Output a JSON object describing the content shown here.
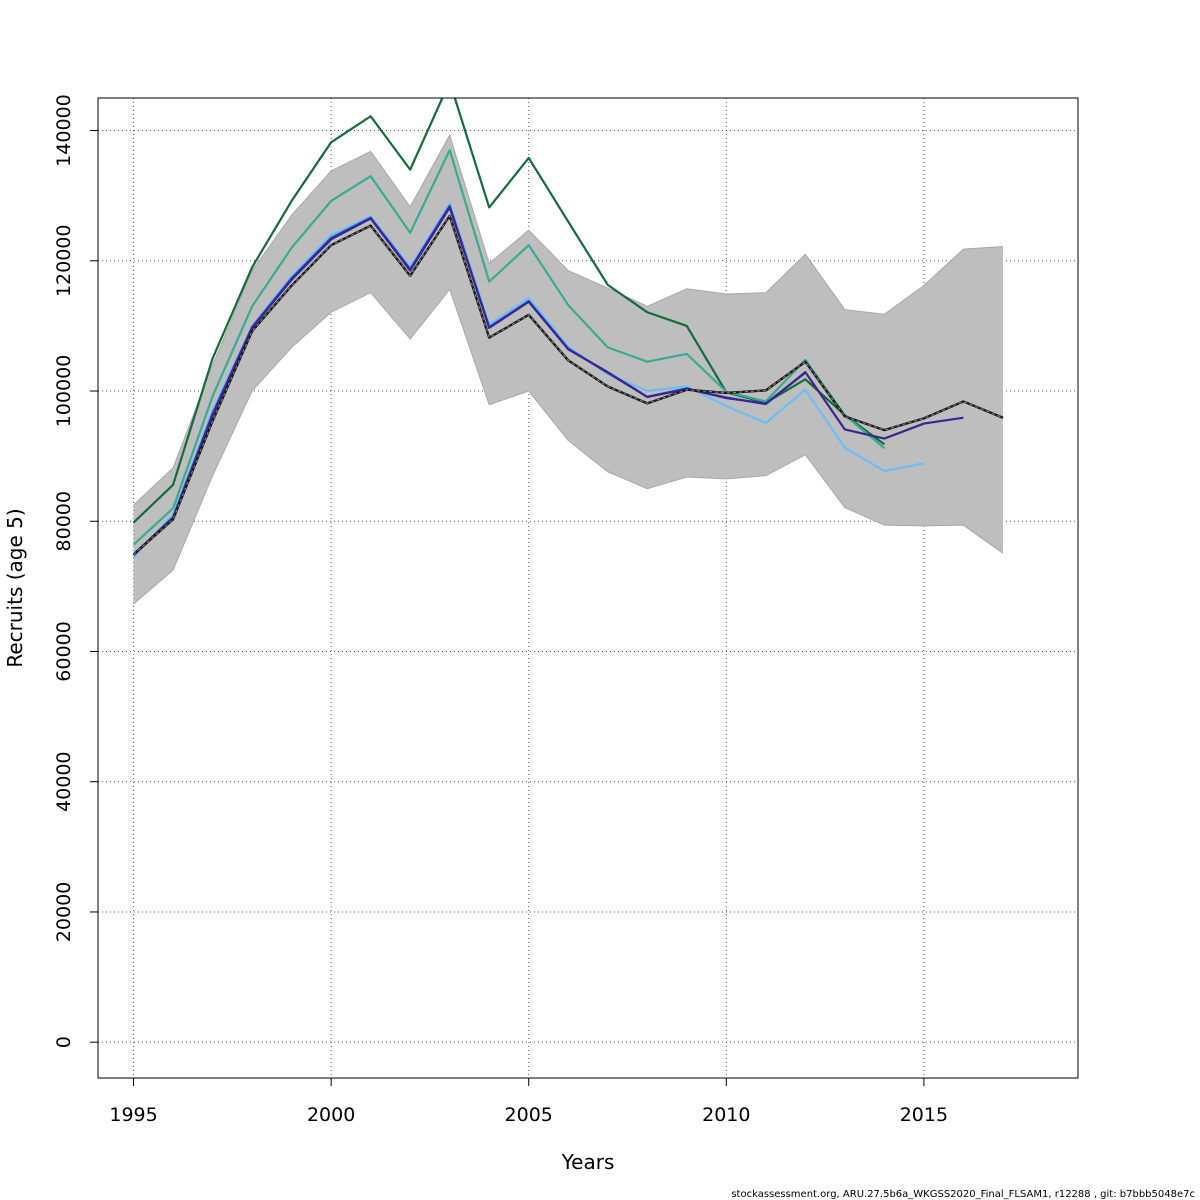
{
  "chart_data": {
    "type": "line",
    "xlabel": "Years",
    "ylabel": "Recruits (age 5)",
    "xlim": [
      1994.1,
      2018.9
    ],
    "ylim": [
      -5500,
      145000
    ],
    "x_ticks": [
      1995,
      2000,
      2005,
      2010,
      2015
    ],
    "y_ticks": [
      0,
      20000,
      40000,
      60000,
      80000,
      100000,
      120000,
      140000
    ],
    "grid": true,
    "confidence_band": {
      "color": "#bebebe",
      "x": [
        1995,
        1996,
        1997,
        1998,
        1999,
        2000,
        2001,
        2002,
        2003,
        2004,
        2005,
        2006,
        2007,
        2008,
        2009,
        2010,
        2011,
        2012,
        2013,
        2014,
        2015,
        2016,
        2017
      ],
      "upper": [
        82500,
        88200,
        104000,
        118500,
        127000,
        133800,
        136800,
        128300,
        139300,
        119600,
        124700,
        118500,
        115800,
        113000,
        115700,
        114900,
        115100,
        121000,
        112500,
        111800,
        116200,
        121800,
        122200
      ],
      "lower": [
        67300,
        72500,
        87000,
        100000,
        106700,
        112100,
        115100,
        108000,
        115600,
        97900,
        100000,
        92400,
        87600,
        85000,
        86800,
        86500,
        87000,
        90200,
        82100,
        79400,
        79300,
        79400,
        75100
      ]
    },
    "series": [
      {
        "color": "#1a1a1a",
        "dashed": true,
        "x": [
          1995,
          1996,
          1997,
          1998,
          1999,
          2000,
          2001,
          2002,
          2003,
          2004,
          2005,
          2006,
          2007,
          2008,
          2009,
          2010,
          2011,
          2012,
          2013,
          2014,
          2015,
          2016,
          2017
        ],
        "values": [
          74900,
          80300,
          95400,
          109200,
          116200,
          122400,
          125400,
          117700,
          126900,
          108200,
          111700,
          104700,
          100700,
          98100,
          100200,
          99700,
          100100,
          104500,
          96100,
          94000,
          95800,
          98400,
          95900
        ]
      },
      {
        "color": "#146b3a",
        "x": [
          1995,
          1996,
          1997,
          1998,
          1999,
          2000,
          2001,
          2002,
          2003,
          2004,
          2005,
          2006,
          2007,
          2008,
          2009,
          2010,
          2011,
          2012,
          2013,
          2014
        ],
        "values": [
          79800,
          85600,
          105000,
          119000,
          129200,
          138200,
          142200,
          134000,
          147500,
          128200,
          135800,
          126000,
          116300,
          112100,
          110000,
          99800,
          98200,
          101800,
          96300,
          91800
        ]
      },
      {
        "color": "#3aab8e",
        "x": [
          1995,
          1996,
          1997,
          1998,
          1999,
          2000,
          2001,
          2002,
          2003,
          2004,
          2005,
          2006,
          2007,
          2008,
          2009,
          2010,
          2011,
          2012,
          2013,
          2014
        ],
        "values": [
          76400,
          82000,
          99200,
          113000,
          122000,
          129200,
          133000,
          124300,
          137000,
          116800,
          122400,
          113200,
          106700,
          104500,
          105700,
          99900,
          98400,
          104800,
          96300,
          91200
        ]
      },
      {
        "color": "#6bbdf5",
        "x": [
          1995,
          1996,
          1997,
          1998,
          1999,
          2000,
          2001,
          2002,
          2003,
          2004,
          2005,
          2006,
          2007,
          2008,
          2009,
          2010,
          2011,
          2012,
          2013,
          2014,
          2015
        ],
        "values": [
          74500,
          81000,
          97000,
          110000,
          117600,
          123900,
          126800,
          119000,
          128800,
          110200,
          114300,
          106800,
          102600,
          100000,
          100700,
          97700,
          95100,
          100200,
          91300,
          87700,
          88900
        ]
      },
      {
        "color": "#1f3fd0",
        "x": [
          1995,
          1996,
          1997,
          1998,
          1999,
          2000,
          2001,
          2002,
          2003,
          2004,
          2005,
          2006,
          2007,
          2008,
          2009,
          2010,
          2011,
          2012
        ],
        "values": [
          74900,
          80600,
          96500,
          109800,
          117300,
          123500,
          126600,
          118700,
          128400,
          109800,
          113800,
          106500,
          102800,
          99100,
          100400,
          98900,
          98100,
          102800
        ]
      },
      {
        "color": "#3c2590",
        "x": [
          1995,
          1996,
          1997,
          1998,
          1999,
          2000,
          2001,
          2002,
          2003,
          2004,
          2005,
          2006,
          2007,
          2008,
          2009,
          2010,
          2011,
          2012,
          2013,
          2014,
          2015,
          2016
        ],
        "values": [
          74800,
          80500,
          96300,
          109700,
          117100,
          123300,
          126500,
          118500,
          128200,
          109700,
          113700,
          106400,
          102900,
          99100,
          100300,
          99000,
          98000,
          102900,
          94100,
          92700,
          95000,
          95900
        ]
      }
    ]
  },
  "footer": {
    "text": "stockassessment.org, ARU.27.5b6a_WKGSS2020_Final_FLSAM1, r12288 , git: b7bbb5048e7c"
  }
}
